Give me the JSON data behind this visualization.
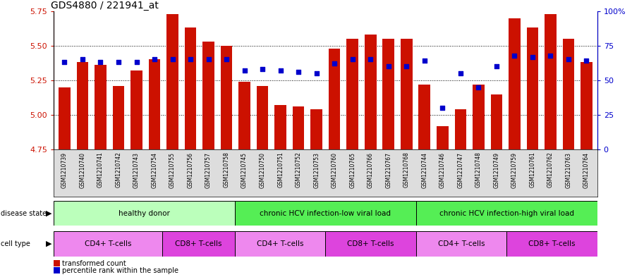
{
  "title": "GDS4880 / 221941_at",
  "samples": [
    "GSM1210739",
    "GSM1210740",
    "GSM1210741",
    "GSM1210742",
    "GSM1210743",
    "GSM1210754",
    "GSM1210755",
    "GSM1210756",
    "GSM1210757",
    "GSM1210758",
    "GSM1210745",
    "GSM1210750",
    "GSM1210751",
    "GSM1210752",
    "GSM1210753",
    "GSM1210760",
    "GSM1210765",
    "GSM1210766",
    "GSM1210767",
    "GSM1210768",
    "GSM1210744",
    "GSM1210746",
    "GSM1210747",
    "GSM1210748",
    "GSM1210749",
    "GSM1210759",
    "GSM1210761",
    "GSM1210762",
    "GSM1210763",
    "GSM1210764"
  ],
  "bar_values": [
    5.2,
    5.38,
    5.36,
    5.21,
    5.32,
    5.4,
    5.73,
    5.63,
    5.53,
    5.5,
    5.24,
    5.21,
    5.07,
    5.06,
    5.04,
    5.48,
    5.55,
    5.58,
    5.55,
    5.55,
    5.22,
    4.92,
    5.04,
    5.22,
    5.15,
    5.7,
    5.63,
    5.73,
    5.55,
    5.38
  ],
  "percentile_values": [
    63,
    65,
    63,
    63,
    63,
    65,
    65,
    65,
    65,
    65,
    57,
    58,
    57,
    56,
    55,
    62,
    65,
    65,
    60,
    60,
    64,
    30,
    55,
    45,
    60,
    68,
    67,
    68,
    65,
    64
  ],
  "ylim_left": [
    4.75,
    5.75
  ],
  "ylim_right": [
    0,
    100
  ],
  "yticks_left": [
    4.75,
    5.0,
    5.25,
    5.5,
    5.75
  ],
  "yticks_right_vals": [
    0,
    25,
    50,
    75,
    100
  ],
  "yticks_right_labels": [
    "0",
    "25",
    "50",
    "75",
    "100%"
  ],
  "bar_color": "#cc1100",
  "dot_color": "#0000cc",
  "background_color": "#ffffff",
  "disease_groups": [
    {
      "label": "healthy donor",
      "start": 0,
      "end": 10,
      "color": "#bbffbb"
    },
    {
      "label": "chronic HCV infection-low viral load",
      "start": 10,
      "end": 20,
      "color": "#55ee55"
    },
    {
      "label": "chronic HCV infection-high viral load",
      "start": 20,
      "end": 30,
      "color": "#55ee55"
    }
  ],
  "cell_groups": [
    {
      "label": "CD4+ T-cells",
      "start": 0,
      "end": 6,
      "color": "#ee88ee"
    },
    {
      "label": "CD8+ T-cells",
      "start": 6,
      "end": 10,
      "color": "#dd44dd"
    },
    {
      "label": "CD4+ T-cells",
      "start": 10,
      "end": 15,
      "color": "#ee88ee"
    },
    {
      "label": "CD8+ T-cells",
      "start": 15,
      "end": 20,
      "color": "#dd44dd"
    },
    {
      "label": "CD4+ T-cells",
      "start": 20,
      "end": 25,
      "color": "#ee88ee"
    },
    {
      "label": "CD8+ T-cells",
      "start": 25,
      "end": 30,
      "color": "#dd44dd"
    }
  ]
}
